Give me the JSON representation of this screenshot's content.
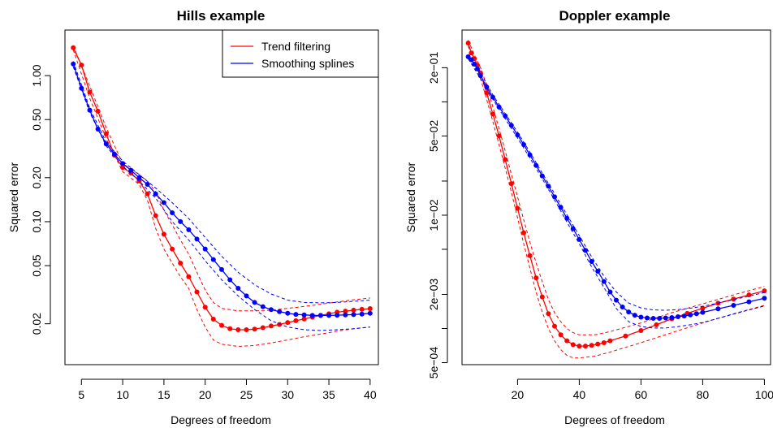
{
  "chart_data": [
    {
      "type": "line",
      "title": "Hills example",
      "xlabel": "Degrees of freedom",
      "ylabel": "Squared error",
      "y_scale": "log",
      "xlim": [
        3,
        41
      ],
      "ylim": [
        0.0105,
        2.05
      ],
      "x_ticks": [
        5,
        10,
        15,
        20,
        25,
        30,
        35,
        40
      ],
      "y_ticks": [
        0.02,
        0.05,
        0.1,
        0.2,
        0.5,
        1.0
      ],
      "y_tick_labels": [
        "0.02",
        "0.05",
        "0.10",
        "0.20",
        "0.50",
        "1.00"
      ],
      "legend": {
        "position": "top-right",
        "entries": [
          "Trend filtering",
          "Smoothing splines"
        ]
      },
      "series": [
        {
          "name": "Trend filtering",
          "color": "#ff0000",
          "style": "line-points",
          "x": [
            4,
            5,
            6,
            7,
            8,
            9,
            10,
            11,
            12,
            13,
            14,
            15,
            16,
            17,
            18,
            19,
            20,
            21,
            22,
            23,
            24,
            25,
            26,
            27,
            28,
            29,
            30,
            31,
            32,
            33,
            34,
            35,
            36,
            37,
            38,
            39,
            40
          ],
          "y": [
            1.55,
            1.18,
            0.77,
            0.57,
            0.4,
            0.285,
            0.235,
            0.215,
            0.19,
            0.155,
            0.11,
            0.082,
            0.065,
            0.052,
            0.042,
            0.033,
            0.026,
            0.0215,
            0.0195,
            0.0185,
            0.0182,
            0.0182,
            0.0184,
            0.0188,
            0.0193,
            0.0198,
            0.0204,
            0.021,
            0.0216,
            0.0222,
            0.0228,
            0.0234,
            0.024,
            0.0244,
            0.0248,
            0.0251,
            0.0254
          ]
        },
        {
          "name": "Trend filtering band (upper)",
          "color": "#ff0000",
          "style": "dashed",
          "x": [
            4,
            6,
            8,
            10,
            12,
            13,
            14,
            15,
            16,
            17,
            18,
            19,
            20,
            21,
            22,
            24,
            26,
            28,
            30,
            32,
            34,
            36,
            38,
            40
          ],
          "y": [
            1.6,
            0.85,
            0.44,
            0.25,
            0.21,
            0.19,
            0.16,
            0.12,
            0.095,
            0.075,
            0.06,
            0.045,
            0.034,
            0.028,
            0.0255,
            0.0245,
            0.0245,
            0.0248,
            0.0255,
            0.0263,
            0.0272,
            0.0282,
            0.0292,
            0.03
          ]
        },
        {
          "name": "Trend filtering band (lower)",
          "color": "#ff0000",
          "style": "dashed",
          "x": [
            4,
            6,
            8,
            10,
            12,
            13,
            14,
            15,
            16,
            17,
            18,
            19,
            20,
            21,
            22,
            24,
            26,
            28,
            30,
            32,
            34,
            36,
            38,
            40
          ],
          "y": [
            1.5,
            0.7,
            0.37,
            0.22,
            0.18,
            0.14,
            0.09,
            0.065,
            0.052,
            0.042,
            0.035,
            0.025,
            0.019,
            0.0155,
            0.0145,
            0.014,
            0.0142,
            0.0148,
            0.0155,
            0.0163,
            0.017,
            0.0178,
            0.0185,
            0.019
          ]
        },
        {
          "name": "Smoothing splines",
          "color": "#0000ff",
          "style": "line-points",
          "x": [
            4,
            5,
            6,
            7,
            8,
            9,
            10,
            11,
            12,
            13,
            14,
            15,
            16,
            17,
            18,
            19,
            20,
            21,
            22,
            23,
            24,
            25,
            26,
            27,
            28,
            29,
            30,
            31,
            32,
            33,
            34,
            35,
            36,
            37,
            38,
            39,
            40
          ],
          "y": [
            1.2,
            0.82,
            0.58,
            0.43,
            0.34,
            0.29,
            0.25,
            0.225,
            0.2,
            0.18,
            0.155,
            0.135,
            0.115,
            0.1,
            0.088,
            0.076,
            0.065,
            0.055,
            0.047,
            0.04,
            0.035,
            0.031,
            0.028,
            0.0262,
            0.025,
            0.0242,
            0.0236,
            0.0232,
            0.023,
            0.0228,
            0.0228,
            0.0228,
            0.0229,
            0.023,
            0.0231,
            0.0233,
            0.0236
          ]
        },
        {
          "name": "Smoothing splines band (upper)",
          "color": "#0000ff",
          "style": "dashed",
          "x": [
            4,
            6,
            8,
            10,
            12,
            14,
            16,
            18,
            20,
            22,
            24,
            26,
            28,
            30,
            32,
            34,
            36,
            38,
            40
          ],
          "y": [
            1.25,
            0.6,
            0.35,
            0.26,
            0.21,
            0.17,
            0.135,
            0.105,
            0.078,
            0.058,
            0.045,
            0.037,
            0.032,
            0.029,
            0.028,
            0.0278,
            0.028,
            0.0285,
            0.029
          ]
        },
        {
          "name": "Smoothing splines band (lower)",
          "color": "#0000ff",
          "style": "dashed",
          "x": [
            4,
            6,
            8,
            10,
            12,
            14,
            16,
            18,
            20,
            22,
            24,
            26,
            28,
            30,
            32,
            34,
            36,
            38,
            40
          ],
          "y": [
            1.15,
            0.56,
            0.33,
            0.24,
            0.19,
            0.145,
            0.1,
            0.075,
            0.054,
            0.04,
            0.031,
            0.025,
            0.021,
            0.019,
            0.0182,
            0.018,
            0.0182,
            0.0185,
            0.019
          ]
        }
      ]
    },
    {
      "type": "line",
      "title": "Doppler example",
      "xlabel": "Degrees of freedom",
      "ylabel": "Squared error",
      "y_scale": "log",
      "xlim": [
        2,
        102
      ],
      "ylim": [
        0.00048,
        0.43
      ],
      "x_ticks": [
        20,
        40,
        60,
        80,
        100
      ],
      "y_ticks": [
        0.0005,
        0.002,
        0.01,
        0.05,
        0.2
      ],
      "y_tick_labels": [
        "5e−04",
        "2e−03",
        "1e−02",
        "5e−02",
        "2e−01"
      ],
      "y_minor_ticks": [
        0.001,
        0.005,
        0.02,
        0.1
      ],
      "series": [
        {
          "name": "Trend filtering",
          "color": "#ff0000",
          "style": "line-points",
          "x": [
            4,
            5,
            6,
            7,
            8,
            10,
            12,
            14,
            16,
            18,
            20,
            22,
            24,
            26,
            28,
            30,
            32,
            34,
            36,
            38,
            40,
            42,
            44,
            46,
            48,
            50,
            55,
            60,
            65,
            70,
            75,
            80,
            85,
            90,
            95,
            100
          ],
          "y": [
            0.33,
            0.27,
            0.24,
            0.21,
            0.18,
            0.12,
            0.078,
            0.05,
            0.031,
            0.019,
            0.0115,
            0.007,
            0.0044,
            0.0028,
            0.0019,
            0.00135,
            0.00105,
            0.00088,
            0.00078,
            0.00072,
            0.0007,
            0.0007,
            0.00071,
            0.00073,
            0.00075,
            0.00078,
            0.00086,
            0.00096,
            0.00108,
            0.00122,
            0.00136,
            0.00151,
            0.00167,
            0.00182,
            0.00198,
            0.00215
          ]
        },
        {
          "name": "Trend filtering band (upper)",
          "color": "#ff0000",
          "style": "dashed",
          "x": [
            4,
            6,
            8,
            10,
            12,
            14,
            16,
            18,
            20,
            22,
            24,
            26,
            28,
            30,
            32,
            34,
            36,
            38,
            40,
            45,
            50,
            60,
            70,
            80,
            90,
            100
          ],
          "y": [
            0.35,
            0.26,
            0.2,
            0.14,
            0.09,
            0.058,
            0.037,
            0.023,
            0.0145,
            0.0091,
            0.0058,
            0.0038,
            0.0026,
            0.0018,
            0.00138,
            0.00115,
            0.001,
            0.00092,
            0.00088,
            0.00088,
            0.00094,
            0.00112,
            0.00138,
            0.00165,
            0.00198,
            0.00235
          ]
        },
        {
          "name": "Trend filtering band (lower)",
          "color": "#ff0000",
          "style": "dashed",
          "x": [
            4,
            6,
            8,
            10,
            12,
            14,
            16,
            18,
            20,
            22,
            24,
            26,
            28,
            30,
            32,
            34,
            36,
            38,
            40,
            45,
            50,
            60,
            70,
            80,
            90,
            100
          ],
          "y": [
            0.31,
            0.22,
            0.16,
            0.105,
            0.067,
            0.042,
            0.026,
            0.016,
            0.0095,
            0.0056,
            0.0034,
            0.0021,
            0.0014,
            0.001,
            0.00078,
            0.00065,
            0.00058,
            0.00055,
            0.00055,
            0.00057,
            0.00062,
            0.00075,
            0.00092,
            0.00112,
            0.00135,
            0.0016
          ]
        },
        {
          "name": "Smoothing splines",
          "color": "#0000ff",
          "style": "line-points",
          "x": [
            4,
            5,
            6,
            7,
            8,
            10,
            12,
            14,
            16,
            18,
            20,
            22,
            24,
            26,
            28,
            30,
            32,
            34,
            36,
            38,
            40,
            42,
            44,
            46,
            48,
            50,
            52,
            54,
            56,
            58,
            60,
            62,
            64,
            66,
            68,
            70,
            72,
            74,
            76,
            78,
            80,
            85,
            90,
            95,
            100
          ],
          "y": [
            0.25,
            0.235,
            0.215,
            0.195,
            0.17,
            0.135,
            0.11,
            0.09,
            0.075,
            0.062,
            0.051,
            0.042,
            0.034,
            0.0275,
            0.0222,
            0.018,
            0.0145,
            0.0117,
            0.0094,
            0.0076,
            0.0061,
            0.0049,
            0.0039,
            0.0032,
            0.0026,
            0.0021,
            0.00178,
            0.00155,
            0.0014,
            0.00131,
            0.00126,
            0.00124,
            0.00123,
            0.00123,
            0.00124,
            0.00125,
            0.00127,
            0.00129,
            0.00132,
            0.00135,
            0.00139,
            0.00149,
            0.0016,
            0.00172,
            0.00185
          ]
        },
        {
          "name": "Smoothing splines band (upper)",
          "color": "#0000ff",
          "style": "dashed",
          "x": [
            4,
            8,
            12,
            16,
            20,
            24,
            28,
            32,
            36,
            40,
            44,
            48,
            52,
            56,
            60,
            64,
            68,
            72,
            76,
            80,
            85,
            90,
            95,
            100
          ],
          "y": [
            0.26,
            0.18,
            0.115,
            0.079,
            0.054,
            0.036,
            0.0235,
            0.0155,
            0.0101,
            0.0066,
            0.0043,
            0.0029,
            0.0021,
            0.00168,
            0.00152,
            0.00146,
            0.00145,
            0.00147,
            0.00151,
            0.00157,
            0.00168,
            0.0018,
            0.00193,
            0.00208
          ]
        },
        {
          "name": "Smoothing splines band (lower)",
          "color": "#0000ff",
          "style": "dashed",
          "x": [
            4,
            8,
            12,
            16,
            20,
            24,
            28,
            32,
            36,
            40,
            44,
            48,
            52,
            56,
            60,
            64,
            68,
            72,
            76,
            80,
            85,
            90,
            95,
            100
          ],
          "y": [
            0.24,
            0.16,
            0.105,
            0.071,
            0.048,
            0.032,
            0.021,
            0.0136,
            0.0087,
            0.0056,
            0.0035,
            0.0023,
            0.0015,
            0.00115,
            0.00104,
            0.00101,
            0.00101,
            0.00104,
            0.00108,
            0.00113,
            0.00123,
            0.00134,
            0.00146,
            0.00158
          ]
        }
      ]
    }
  ]
}
